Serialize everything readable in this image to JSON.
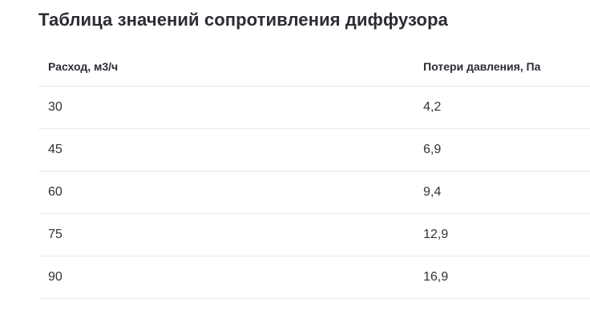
{
  "page": {
    "title": "Таблица значений сопротивления диффузора"
  },
  "table": {
    "columns": [
      "Расход, м3/ч",
      "Потери давления, Па"
    ],
    "rows": [
      [
        "30",
        "4,2"
      ],
      [
        "45",
        "6,9"
      ],
      [
        "60",
        "9,4"
      ],
      [
        "75",
        "12,9"
      ],
      [
        "90",
        "16,9"
      ]
    ]
  },
  "colors": {
    "background": "#ffffff",
    "title_text": "#2b2d35",
    "header_text": "#2b2d35",
    "body_text": "#333333",
    "divider": "#e7e7e7"
  },
  "chart_data": {
    "type": "table",
    "title": "Таблица значений сопротивления диффузора",
    "columns": [
      "Расход, м3/ч",
      "Потери давления, Па"
    ],
    "rows": [
      [
        30,
        4.2
      ],
      [
        45,
        6.9
      ],
      [
        60,
        9.4
      ],
      [
        75,
        12.9
      ],
      [
        90,
        16.9
      ]
    ],
    "notes": "Decimal values are displayed with comma separators (Russian locale). Thin light-gray horizontal rules separate rows; no vertical rules; white background."
  }
}
